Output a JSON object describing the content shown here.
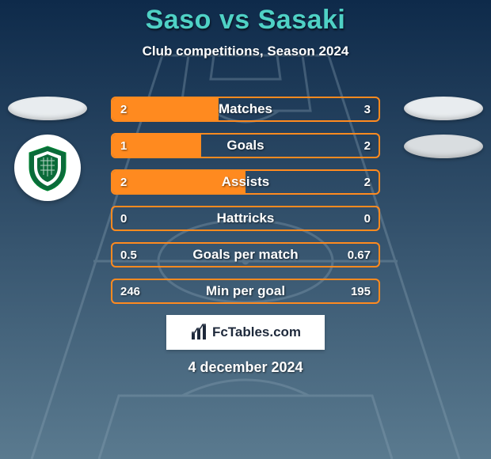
{
  "background": {
    "top_color": "#0e2a4a",
    "bottom_color": "#5a7a8f",
    "pitch_line_color": "#8aa3b5",
    "pitch_line_opacity": 0.35
  },
  "title": {
    "text": "Saso vs Sasaki",
    "color": "#4fd1c5",
    "fontsize": 34,
    "shadow": "1px 2px 2px rgba(0,0,0,0.6)"
  },
  "subtitle": {
    "text": "Club competitions, Season 2024",
    "color": "#ffffff",
    "fontsize": 17,
    "shadow": "1px 1px 2px rgba(0,0,0,0.6)"
  },
  "badges": {
    "left": {
      "ellipse_color": "#e8ecef",
      "crest_accent": "#0b6b3a"
    },
    "right": {
      "ellipse_color_1": "#e8ecef",
      "ellipse_color_2": "#d9dde0"
    }
  },
  "bars": {
    "frame_color": "#ff8a1f",
    "fill_color": "#ff8a1f",
    "empty_color": "transparent",
    "label_fontsize": 17,
    "value_fontsize": 15,
    "rows": [
      {
        "label": "Matches",
        "left": "2",
        "right": "3",
        "left_ratio": 0.4
      },
      {
        "label": "Goals",
        "left": "1",
        "right": "2",
        "left_ratio": 0.333
      },
      {
        "label": "Assists",
        "left": "2",
        "right": "2",
        "left_ratio": 0.5
      },
      {
        "label": "Hattricks",
        "left": "0",
        "right": "0",
        "left_ratio": 0.0
      },
      {
        "label": "Goals per match",
        "left": "0.5",
        "right": "0.67",
        "left_ratio": 0.0
      },
      {
        "label": "Min per goal",
        "left": "246",
        "right": "195",
        "left_ratio": 0.0
      }
    ]
  },
  "brand": {
    "text": "FcTables.com",
    "fontsize": 17
  },
  "date": {
    "text": "4 december 2024",
    "fontsize": 18
  }
}
